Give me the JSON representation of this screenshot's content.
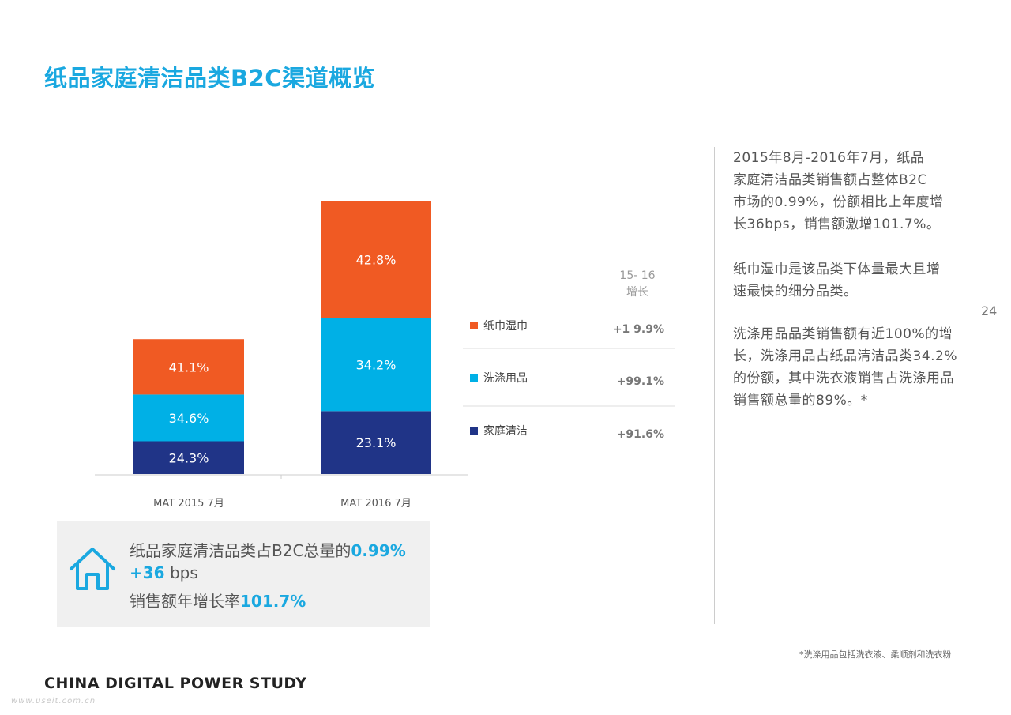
{
  "title": "纸品家庭清洁品类B2C渠道概览",
  "chart_data": {
    "type": "bar",
    "stacked": true,
    "categories": [
      "MAT 2015 7月",
      "MAT 2016 7月"
    ],
    "unit": "%",
    "series": [
      {
        "name": "家庭清洁",
        "values": [
          24.3,
          23.1
        ],
        "labels": [
          "24.3%",
          "23.1%"
        ],
        "color": "#203487",
        "growth": "+91.6%"
      },
      {
        "name": "洗涤用品",
        "values": [
          34.6,
          34.2
        ],
        "labels": [
          "34.6%",
          "34.2%"
        ],
        "color": "#00b0e6",
        "growth": "+99.1%"
      },
      {
        "name": "纸巾湿巾",
        "values": [
          41.1,
          42.8
        ],
        "labels": [
          "41.1%",
          "42.8%"
        ],
        "color": "#f05a23",
        "growth": "+1 9.9%"
      }
    ],
    "relative_totals": [
      0.99,
      2.0
    ],
    "growth_header": [
      "15- 16",
      "增长"
    ]
  },
  "paragraphs": [
    [
      "2015年8月-2016年7月，纸品",
      "家庭清洁品类销售额占整体B2C",
      "市场的0.99%，份额相比上年度增",
      "长36bps，销售额激增101.7%。"
    ],
    [
      "纸巾湿巾是该品类下体量最大且增",
      "速最快的细分品类。"
    ],
    [
      "洗涤用品品类销售额有近100%的增",
      "长，洗涤用品占纸品清洁品类34.2%",
      "的份额，其中洗衣液销售占洗涤用品",
      "销售额总量的89%。*"
    ]
  ],
  "page_number": "24",
  "summary": {
    "line1_text": "纸品家庭清洁品类占B2C总量的",
    "line1_value": "0.99%",
    "line2_value": "+36",
    "line2_unit": " bps",
    "line3_text": "销售额年增长率",
    "line3_value": "101.7%"
  },
  "footnote": "*洗涤用品包括洗衣液、柔顺剂和洗衣粉",
  "brand": "CHINA DIGITAL POWER STUDY",
  "watermark": "www.useit.com.cn",
  "icons": {
    "summary": "house-icon"
  }
}
